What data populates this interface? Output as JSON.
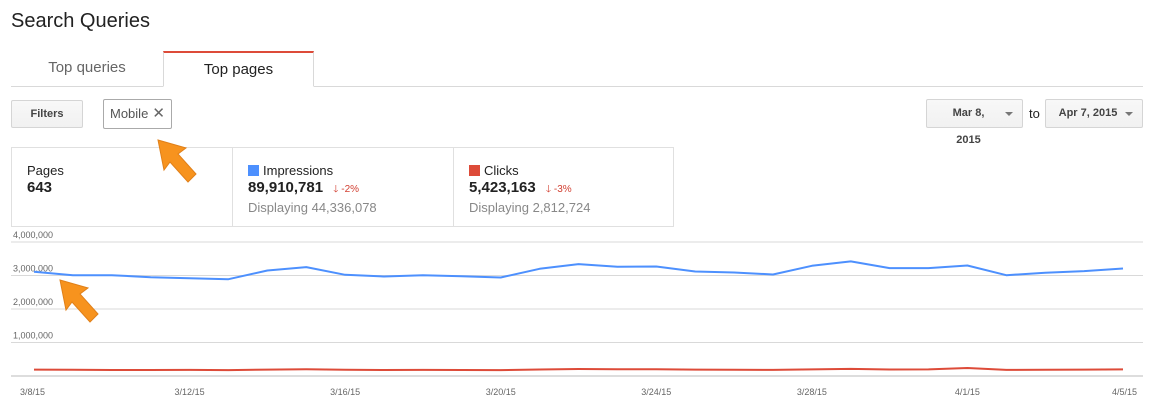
{
  "page": {
    "title": "Search Queries"
  },
  "tabs": [
    {
      "label": "Top queries"
    },
    {
      "label": "Top pages"
    }
  ],
  "toolbar": {
    "filters_label": "Filters",
    "filter_chip": {
      "label": "Mobile",
      "remove_glyph": "✕"
    },
    "date_from": "Mar 8, 2015",
    "to_label": "to",
    "date_to": "Apr 7, 2015"
  },
  "metrics": [
    {
      "label": "Pages",
      "value": "643"
    },
    {
      "label": "Impressions",
      "value": "89,910,781",
      "delta": "-2%",
      "sub": "Displaying 44,336,078",
      "color": "#4d90fe"
    },
    {
      "label": "Clicks",
      "value": "5,423,163",
      "delta": "-3%",
      "sub": "Displaying 2,812,724",
      "color": "#dd4b39"
    }
  ],
  "colors": {
    "accent": "#dd4b39",
    "impressions": "#4d90fe",
    "clicks": "#dd4b39",
    "pointer": "#f7931e"
  },
  "chart_data": {
    "type": "line",
    "x": [
      "3/8/15",
      "3/9/15",
      "3/10/15",
      "3/11/15",
      "3/12/15",
      "3/13/15",
      "3/14/15",
      "3/15/15",
      "3/16/15",
      "3/17/15",
      "3/18/15",
      "3/19/15",
      "3/20/15",
      "3/21/15",
      "3/22/15",
      "3/23/15",
      "3/24/15",
      "3/25/15",
      "3/26/15",
      "3/27/15",
      "3/28/15",
      "3/29/15",
      "3/30/15",
      "3/31/15",
      "4/1/15",
      "4/2/15",
      "4/3/15",
      "4/4/15",
      "4/5/15"
    ],
    "x_tick_labels": [
      "3/8/15",
      "3/12/15",
      "3/16/15",
      "3/20/15",
      "3/24/15",
      "3/28/15",
      "4/1/15",
      "4/5/15"
    ],
    "y_tick_labels": [
      "4,000,000",
      "3,000,000",
      "2,000,000",
      "1,000,000"
    ],
    "y_ticks": [
      4000000,
      3000000,
      2000000,
      1000000
    ],
    "ylim": [
      0,
      4000000
    ],
    "grid": true,
    "series": [
      {
        "name": "Impressions",
        "color": "#4d90fe",
        "values": [
          3110000,
          3010000,
          3010000,
          2950000,
          2920000,
          2890000,
          3150000,
          3250000,
          3020000,
          2970000,
          3010000,
          2980000,
          2940000,
          3200000,
          3340000,
          3260000,
          3270000,
          3120000,
          3090000,
          3030000,
          3290000,
          3420000,
          3220000,
          3220000,
          3300000,
          3010000,
          3080000,
          3130000,
          3210000
        ]
      },
      {
        "name": "Clicks",
        "color": "#dd4b39",
        "values": [
          190000,
          185000,
          180000,
          178000,
          182000,
          176000,
          190000,
          200000,
          185000,
          180000,
          182000,
          178000,
          176000,
          195000,
          210000,
          200000,
          200000,
          190000,
          188000,
          182000,
          198000,
          212000,
          195000,
          196000,
          240000,
          182000,
          186000,
          190000,
          196000
        ]
      }
    ]
  }
}
